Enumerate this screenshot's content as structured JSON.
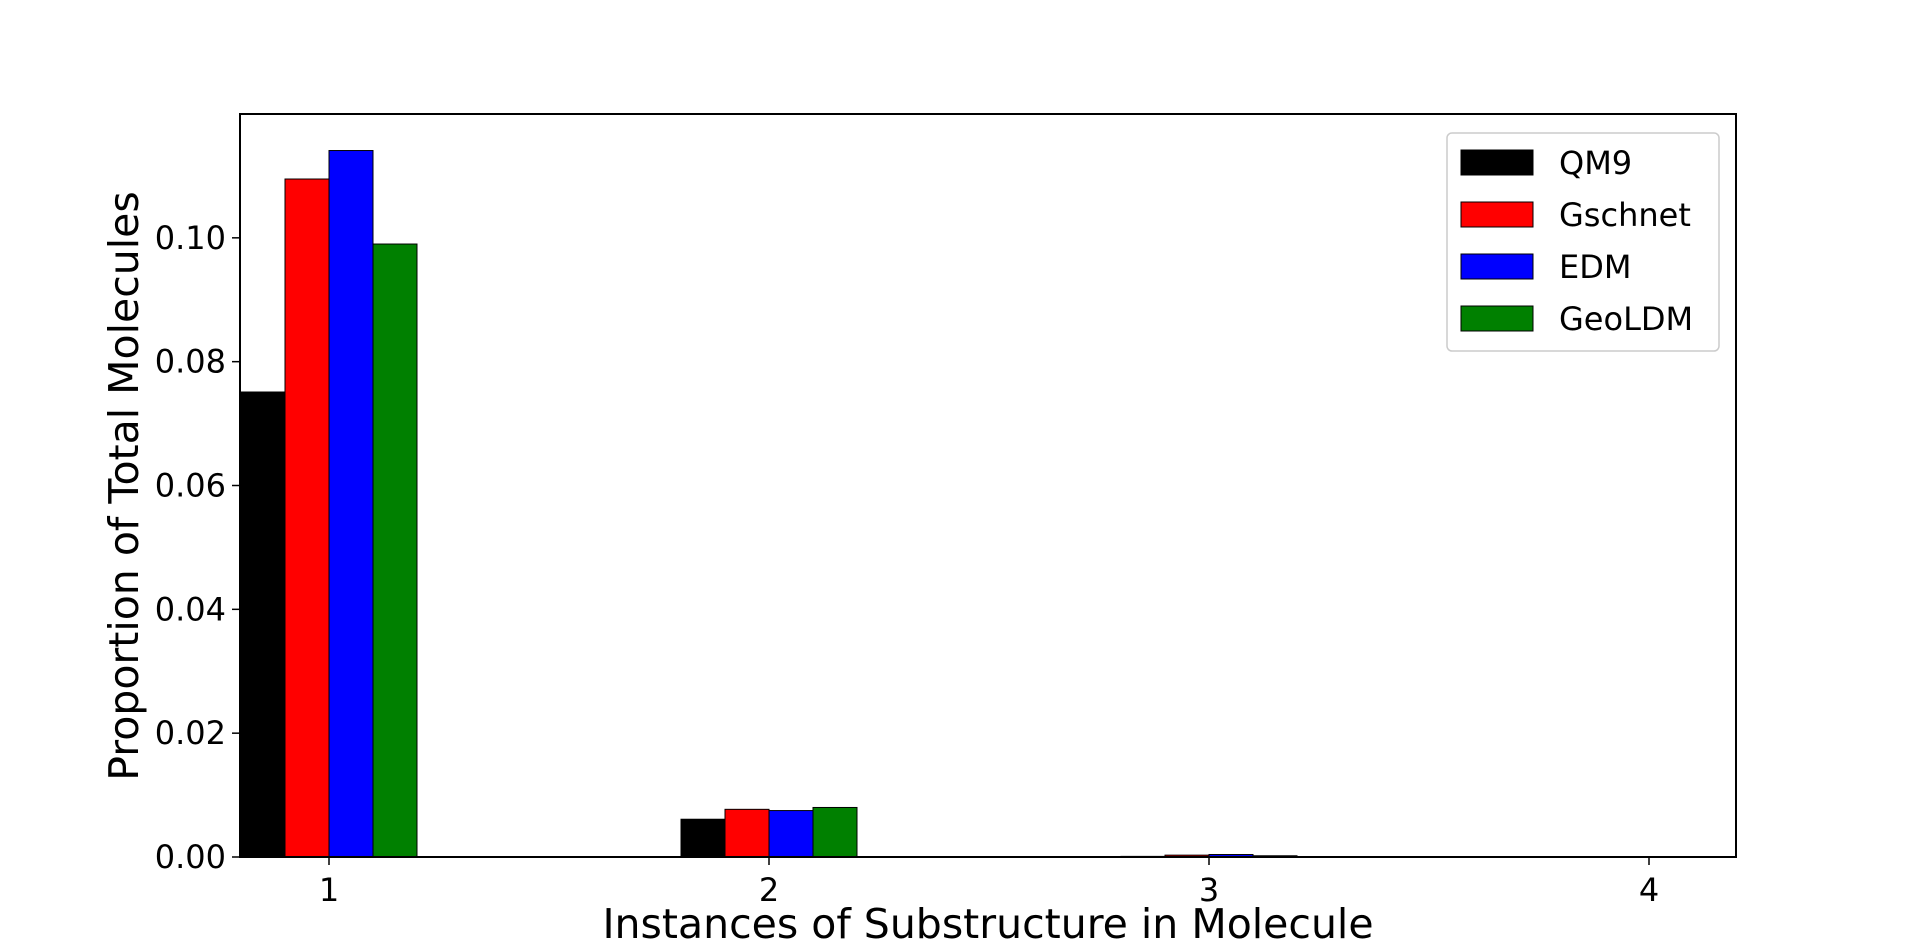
{
  "chart_data": {
    "type": "bar",
    "title": "",
    "xlabel": "Instances of Substructure in Molecule",
    "ylabel": "Proportion of Total Molecules",
    "categories": [
      "1",
      "2",
      "3",
      "4"
    ],
    "x_ticks": [
      "1",
      "2",
      "3",
      "4"
    ],
    "y_ticks": [
      "0.00",
      "0.02",
      "0.04",
      "0.06",
      "0.08",
      "0.10"
    ],
    "ylim": [
      0,
      0.12
    ],
    "legend_position": "top-right",
    "grid": false,
    "series": [
      {
        "name": "QM9",
        "color": "#000000",
        "values": [
          0.0751,
          0.0061,
          0.0001,
          0.0
        ]
      },
      {
        "name": "Gschnet",
        "color": "#ff0000",
        "values": [
          0.1095,
          0.0077,
          0.0003,
          0.0
        ]
      },
      {
        "name": "EDM",
        "color": "#0000ff",
        "values": [
          0.1141,
          0.0075,
          0.0004,
          0.0
        ]
      },
      {
        "name": "GeoLDM",
        "color": "#008000",
        "values": [
          0.099,
          0.008,
          0.0002,
          0.0
        ]
      }
    ]
  }
}
